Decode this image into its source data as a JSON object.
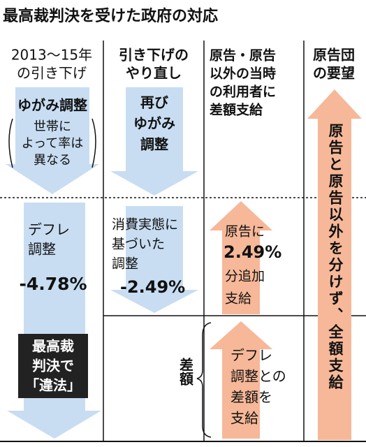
{
  "title": "最高裁判決を受けた政府の対応",
  "columns": [
    {
      "header": [
        "2013〜15年",
        "の引き下げ"
      ],
      "upper": {
        "heading": "ゆがみ調整",
        "note": [
          "世帯に",
          "よって率は",
          "異なる"
        ]
      },
      "lower": {
        "lines": [
          "デフレ",
          "調整"
        ],
        "value": "-4.78%",
        "verdict": [
          "最高裁",
          "判決で",
          "「違法」"
        ]
      }
    },
    {
      "header": [
        "引き下げの",
        "やり直し"
      ],
      "upper": {
        "lines": [
          "再び",
          "ゆがみ",
          "調整"
        ]
      },
      "lower": {
        "lines": [
          "消費実態に",
          "基づいた",
          "調整"
        ],
        "value": "-2.49%"
      }
    },
    {
      "header": [
        "原告・原告",
        "以外の当時",
        "の利用者に",
        "差額支給"
      ],
      "upper": {
        "lines": [
          "原告に"
        ],
        "value": "2.49%",
        "lines2": [
          "分追加",
          "支給"
        ]
      },
      "lower": {
        "lines": [
          "デフレ",
          "調整との",
          "差額を",
          "支給"
        ],
        "brace_label": "差額"
      }
    },
    {
      "header": [
        "原告団",
        "の要望"
      ],
      "arrow_text": "原告と原告以外を分けず、全額支給"
    }
  ]
}
